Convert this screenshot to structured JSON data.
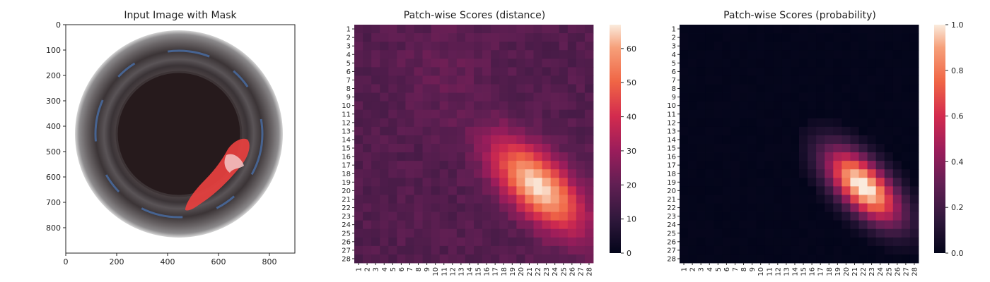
{
  "chart_data": [
    {
      "type": "image",
      "title": "Input Image with Mask",
      "xlim": [
        0,
        900
      ],
      "ylim": [
        900,
        0
      ],
      "xticks": [
        0,
        200,
        400,
        600,
        800
      ],
      "yticks": [
        0,
        100,
        200,
        300,
        400,
        500,
        600,
        700,
        800
      ],
      "content": "circular bottle-neck photograph with red overlay mask",
      "mask_color": "#e8403f"
    },
    {
      "type": "heatmap",
      "title": "Patch-wise Scores (distance)",
      "rows": 28,
      "cols": 28,
      "colorbar": {
        "min": 0,
        "max": 67,
        "ticks": [
          0,
          10,
          20,
          30,
          40,
          50,
          60
        ]
      },
      "colormap": "rocket",
      "hotspot": {
        "center_row": 19.5,
        "center_col": 22,
        "peak": 67
      },
      "baseline": 22
    },
    {
      "type": "heatmap",
      "title": "Patch-wise Scores (probability)",
      "rows": 28,
      "cols": 28,
      "colorbar": {
        "min": 0.0,
        "max": 1.0,
        "ticks": [
          "0.0",
          "0.2",
          "0.4",
          "0.6",
          "0.8",
          "1.0"
        ]
      },
      "colormap": "rocket",
      "hotspot": {
        "center_row": 19.5,
        "center_col": 22,
        "peak": 1.0
      },
      "baseline": 0.0
    }
  ]
}
